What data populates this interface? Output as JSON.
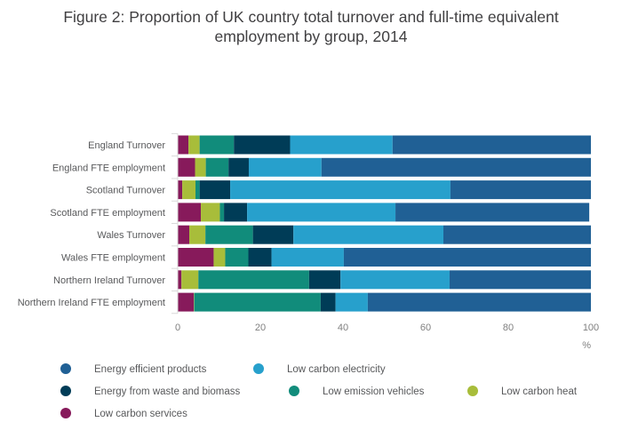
{
  "chart_data": {
    "type": "bar",
    "orientation": "horizontal",
    "stacked": true,
    "title": "Figure 2: Proportion of UK country total turnover and full-time equivalent employment by group, 2014",
    "title_lines": [
      "Figure 2: Proportion of UK country total turnover and full-time equivalent",
      "employment by group, 2014"
    ],
    "xlabel": "%",
    "xlim": [
      0,
      100
    ],
    "xticks": [
      0,
      20,
      40,
      60,
      80,
      100
    ],
    "grid": false,
    "legend_position": "bottom",
    "categories": [
      "England Turnover",
      "England FTE employment",
      "Scotland Turnover",
      "Scotland FTE employment",
      "Wales Turnover",
      "Wales FTE employment",
      "Northern Ireland Turnover",
      "Northern Ireland FTE employment"
    ],
    "series": [
      {
        "name": "Low carbon services",
        "color": "#871a5b",
        "values": [
          2.6,
          4.2,
          1.1,
          5.6,
          2.8,
          8.7,
          0.9,
          3.9
        ]
      },
      {
        "name": "Low carbon heat",
        "color": "#a8bd3a",
        "values": [
          2.7,
          2.6,
          3.2,
          4.6,
          3.9,
          2.8,
          4.1,
          0.1
        ]
      },
      {
        "name": "Low emission vehicles",
        "color": "#118c7b",
        "values": [
          8.3,
          5.5,
          1.0,
          1.0,
          11.5,
          5.6,
          26.8,
          30.6
        ]
      },
      {
        "name": "Energy from waste and biomass",
        "color": "#003c57",
        "values": [
          13.6,
          4.9,
          7.4,
          5.6,
          9.8,
          5.6,
          7.6,
          3.6
        ]
      },
      {
        "name": "Low carbon electricity",
        "color": "#27a0cc",
        "values": [
          24.8,
          17.6,
          53.3,
          35.9,
          36.3,
          17.5,
          26.4,
          7.8
        ]
      },
      {
        "name": "Energy efficient products",
        "color": "#206095",
        "values": [
          48.0,
          65.2,
          34.0,
          46.9,
          35.7,
          59.8,
          34.2,
          54.0
        ]
      }
    ],
    "legend": [
      {
        "name": "Energy efficient products",
        "color": "#206095"
      },
      {
        "name": "Low carbon electricity",
        "color": "#27a0cc"
      },
      {
        "name": "Energy from waste and biomass",
        "color": "#003c57"
      },
      {
        "name": "Low emission vehicles",
        "color": "#118c7b"
      },
      {
        "name": "Low carbon heat",
        "color": "#a8bd3a"
      },
      {
        "name": "Low carbon services",
        "color": "#871a5b"
      }
    ]
  }
}
